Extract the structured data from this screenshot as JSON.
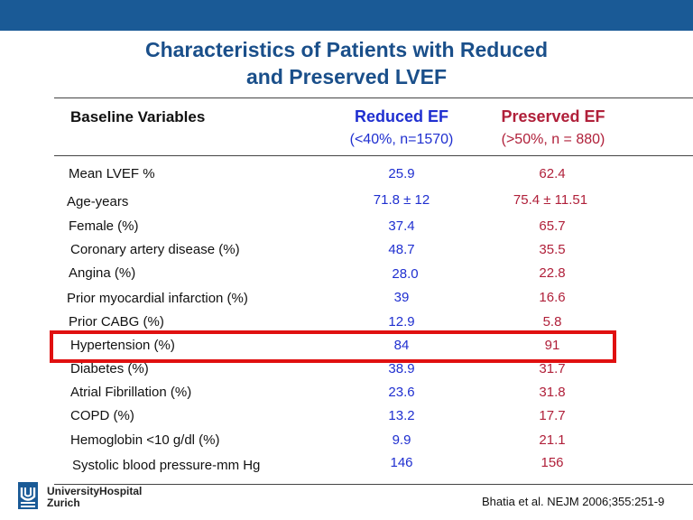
{
  "slide": {
    "title_line1": "Characteristics of Patients with Reduced",
    "title_line2": "and Preserved LVEF"
  },
  "table": {
    "header": {
      "label": "Baseline Variables",
      "reduced_title": "Reduced EF",
      "reduced_sub": "(<40%, n=1570)",
      "preserved_title": "Preserved EF",
      "preserved_sub": "(>50%, n = 880)"
    },
    "rows": [
      {
        "label": "Mean LVEF %",
        "reduced": "25.9",
        "preserved": "62.4"
      },
      {
        "label": "Age-years",
        "reduced": "71.8 ± 12",
        "preserved": "75.4 ± 11.51"
      },
      {
        "label": "Female (%)",
        "reduced": "37.4",
        "preserved": "65.7"
      },
      {
        "label": "Coronary artery disease  (%)",
        "reduced": "48.7",
        "preserved": "35.5"
      },
      {
        "label": "Angina (%)",
        "reduced": "28.0",
        "preserved": "22.8"
      },
      {
        "label": "Prior myocardial infarction (%)",
        "reduced": "39",
        "preserved": "16.6"
      },
      {
        "label": "Prior CABG (%)",
        "reduced": "12.9",
        "preserved": "5.8"
      },
      {
        "label": "Hypertension (%)",
        "reduced": "84",
        "preserved": "91"
      },
      {
        "label": "Diabetes (%)",
        "reduced": "38.9",
        "preserved": "31.7"
      },
      {
        "label": "Atrial Fibrillation (%)",
        "reduced": "23.6",
        "preserved": "31.8"
      },
      {
        "label": "COPD (%)",
        "reduced": "13.2",
        "preserved": "17.7"
      },
      {
        "label": "Hemoglobin <10 g/dl (%)",
        "reduced": "9.9",
        "preserved": "21.1"
      },
      {
        "label": "Systolic blood pressure-mm Hg",
        "reduced": "146",
        "preserved": "156"
      }
    ]
  },
  "highlight": {
    "row": "Hypertension (%)",
    "color": "#e01010"
  },
  "footer": {
    "logo_line1": "UniversityHospital",
    "logo_line2": "Zurich",
    "citation": "Bhatia et al. NEJM 2006;355:251-9"
  },
  "colors": {
    "bar": "#1a5a96",
    "title": "#1a4f8a",
    "reduced": "#1f2fd0",
    "preserved": "#b0203a"
  }
}
